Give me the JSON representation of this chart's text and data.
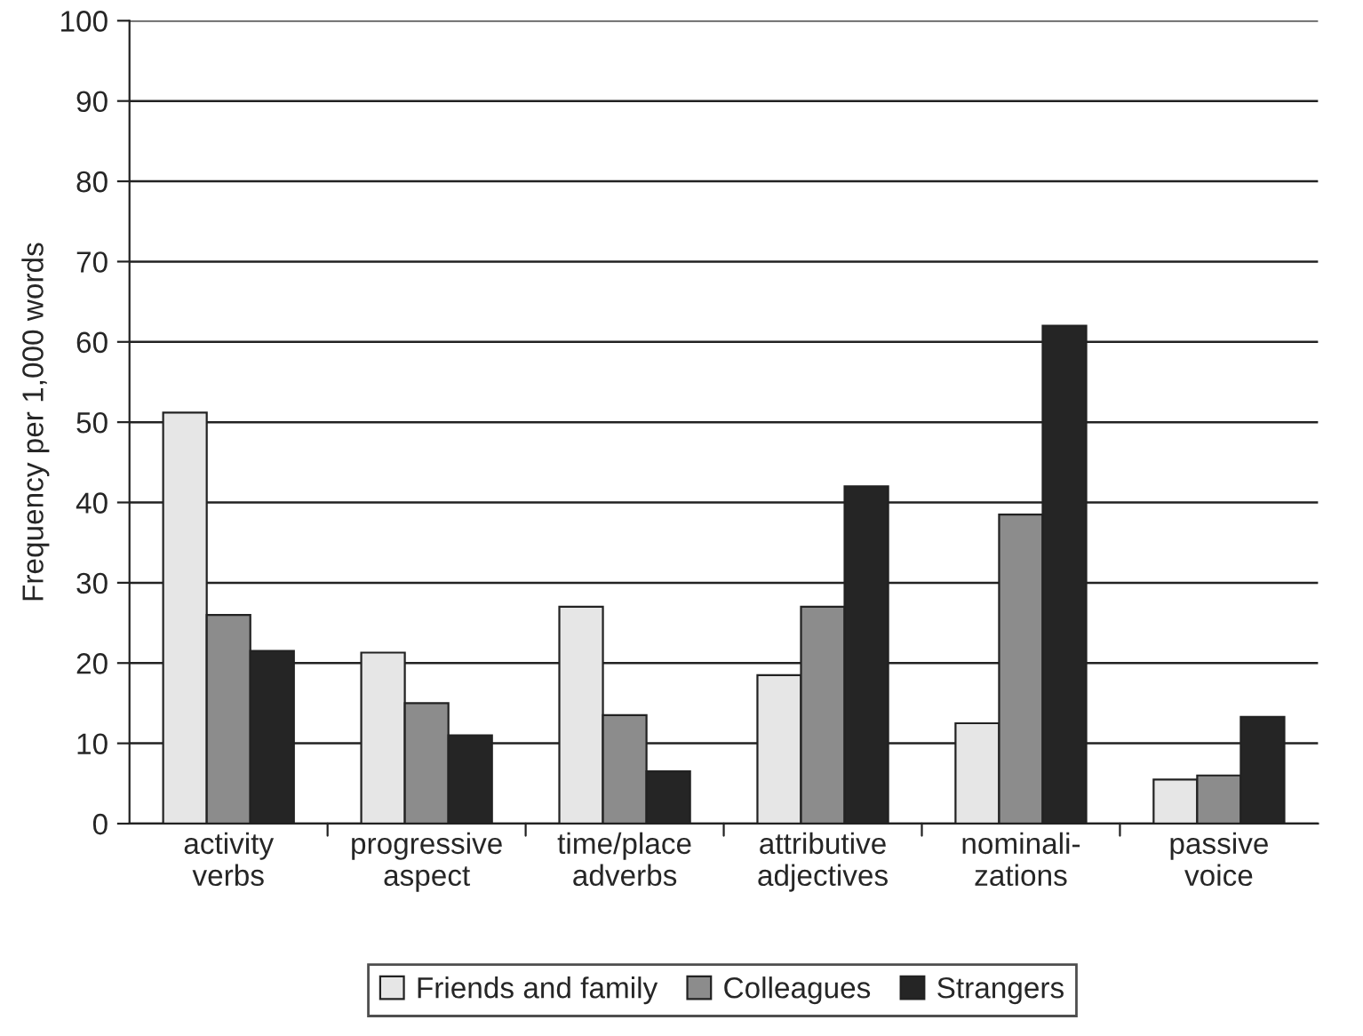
{
  "chart_data": {
    "type": "bar",
    "ylabel": "Frequency per 1,000 words",
    "categories": [
      "activity\nverbs",
      "progressive\naspect",
      "time/place\nadverbs",
      "attributive\nadjectives",
      "nominali-\nzations",
      "passive\nvoice"
    ],
    "series": [
      {
        "name": "Friends and family",
        "color": "#e6e6e6",
        "values": [
          51.2,
          21.3,
          27,
          18.5,
          12.5,
          5.5
        ]
      },
      {
        "name": "Colleagues",
        "color": "#8c8c8c",
        "values": [
          26,
          15,
          13.5,
          27,
          38.5,
          6
        ]
      },
      {
        "name": "Strangers",
        "color": "#252525",
        "values": [
          21.5,
          11,
          6.5,
          42,
          62,
          13.3
        ]
      }
    ],
    "ylim": [
      0,
      100
    ],
    "yticks": [
      0,
      10,
      20,
      30,
      40,
      50,
      60,
      70,
      80,
      90,
      100
    ],
    "grid": "y",
    "legend": "bottom"
  }
}
